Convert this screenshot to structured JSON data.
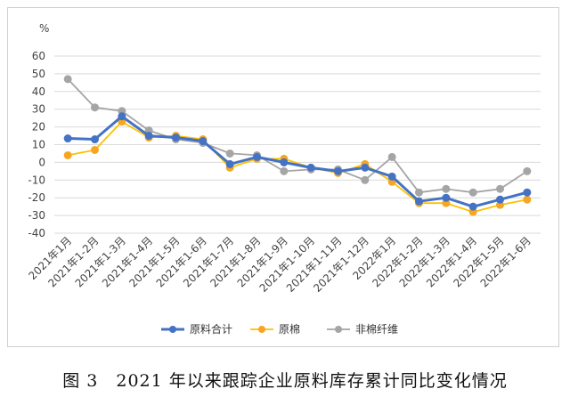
{
  "figure": {
    "caption": "图 3　2021 年以来跟踪企业原料库存累计同比变化情况"
  },
  "chart_data": {
    "type": "line",
    "unit": "%",
    "ylim": [
      -40,
      60
    ],
    "ytick_step": 10,
    "grid": true,
    "legend_position": "bottom",
    "categories": [
      "2021年1月",
      "2021年1-2月",
      "2021年1-3月",
      "2021年1-4月",
      "2021年1-5月",
      "2021年1-6月",
      "2021年1-7月",
      "2021年1-8月",
      "2021年1-9月",
      "2021年1-10月",
      "2021年1-11月",
      "2021年1-12月",
      "2022年1月",
      "2022年1-2月",
      "2022年1-3月",
      "2022年1-4月",
      "2022年1-5月",
      "2022年1-6月"
    ],
    "series": [
      {
        "name": "原料合计",
        "color": "#4472c4",
        "marker_color": "#4472c4",
        "values": [
          13.5,
          13,
          26,
          15,
          14,
          12,
          -1,
          3,
          0,
          -3,
          -5,
          -3,
          -8,
          -22,
          -20,
          -25,
          -21,
          -17
        ]
      },
      {
        "name": "原棉",
        "color": "#ffc000",
        "marker_color": "#f5a623",
        "values": [
          4,
          7,
          23,
          14,
          15,
          13,
          -3,
          2,
          2,
          -3,
          -6,
          -1,
          -11,
          -23,
          -23,
          -28,
          -24,
          -21
        ]
      },
      {
        "name": "非棉纤维",
        "color": "#a5a5a5",
        "marker_color": "#a5a5a5",
        "values": [
          47,
          31,
          29,
          18,
          13,
          11,
          5,
          4,
          -5,
          -4,
          -4,
          -10,
          3,
          -17,
          -15,
          -17,
          -15,
          -5
        ]
      }
    ]
  }
}
